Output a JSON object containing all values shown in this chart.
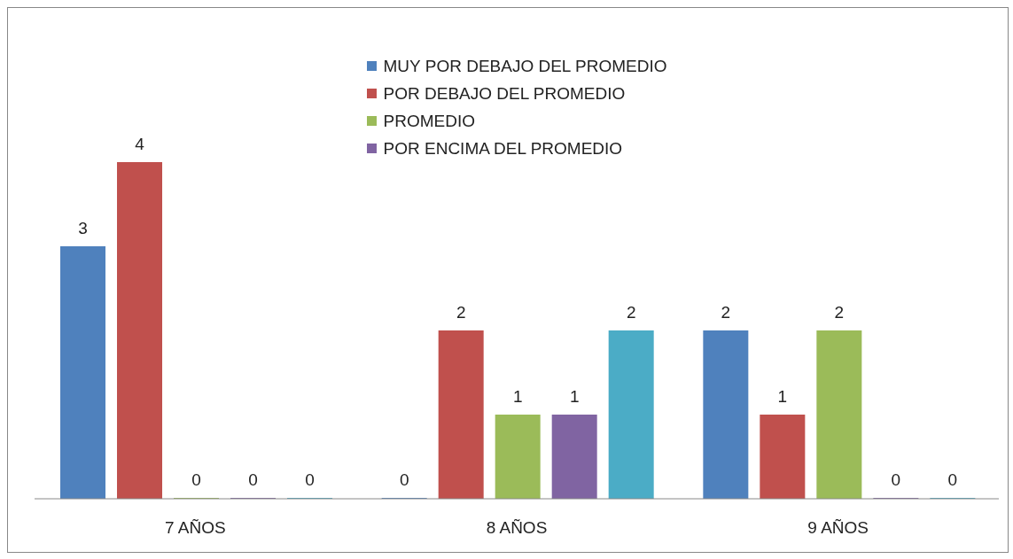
{
  "chart_data": {
    "type": "bar",
    "categories": [
      "7 AÑOS",
      "8 AÑOS",
      "9 AÑOS"
    ],
    "series": [
      {
        "name": "MUY POR DEBAJO DEL PROMEDIO",
        "color": "#4f81bd",
        "values": [
          3,
          0,
          2
        ]
      },
      {
        "name": "POR DEBAJO DEL PROMEDIO",
        "color": "#c0504d",
        "values": [
          4,
          2,
          1
        ]
      },
      {
        "name": "PROMEDIO",
        "color": "#9bbb59",
        "values": [
          0,
          1,
          2
        ]
      },
      {
        "name": "POR ENCIMA DEL PROMEDIO",
        "color": "#8064a2",
        "values": [
          0,
          1,
          0
        ]
      },
      {
        "color": "#4bacc6",
        "values": [
          0,
          2,
          0
        ]
      }
    ],
    "data_labels": true,
    "legend": "top",
    "tick_labels": "x"
  }
}
